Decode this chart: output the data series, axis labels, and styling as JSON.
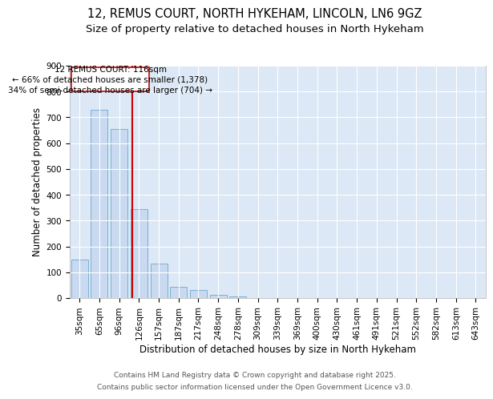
{
  "title1": "12, REMUS COURT, NORTH HYKEHAM, LINCOLN, LN6 9GZ",
  "title2": "Size of property relative to detached houses in North Hykeham",
  "xlabel": "Distribution of detached houses by size in North Hykeham",
  "ylabel": "Number of detached properties",
  "categories": [
    "35sqm",
    "65sqm",
    "96sqm",
    "126sqm",
    "157sqm",
    "187sqm",
    "217sqm",
    "248sqm",
    "278sqm",
    "309sqm",
    "339sqm",
    "369sqm",
    "400sqm",
    "430sqm",
    "461sqm",
    "491sqm",
    "521sqm",
    "552sqm",
    "582sqm",
    "613sqm",
    "643sqm"
  ],
  "values": [
    150,
    730,
    655,
    345,
    135,
    45,
    30,
    12,
    5,
    0,
    0,
    0,
    0,
    0,
    0,
    0,
    0,
    0,
    0,
    0,
    0
  ],
  "bar_color": "#c8d9f0",
  "bar_edge_color": "#7bafd4",
  "bar_width": 0.85,
  "vline_color": "#cc0000",
  "annotation_line1": "12 REMUS COURT: 116sqm",
  "annotation_line2": "← 66% of detached houses are smaller (1,378)",
  "annotation_line3": "34% of semi-detached houses are larger (704) →",
  "bg_color": "#dce8f5",
  "grid_color": "#ffffff",
  "fig_bg_color": "#ffffff",
  "ylim": [
    0,
    900
  ],
  "yticks": [
    0,
    100,
    200,
    300,
    400,
    500,
    600,
    700,
    800,
    900
  ],
  "footer1": "Contains HM Land Registry data © Crown copyright and database right 2025.",
  "footer2": "Contains public sector information licensed under the Open Government Licence v3.0.",
  "title1_fontsize": 10.5,
  "title2_fontsize": 9.5,
  "axis_fontsize": 8.5,
  "tick_fontsize": 7.5,
  "footer_fontsize": 6.5,
  "ann_fontsize": 7.5
}
